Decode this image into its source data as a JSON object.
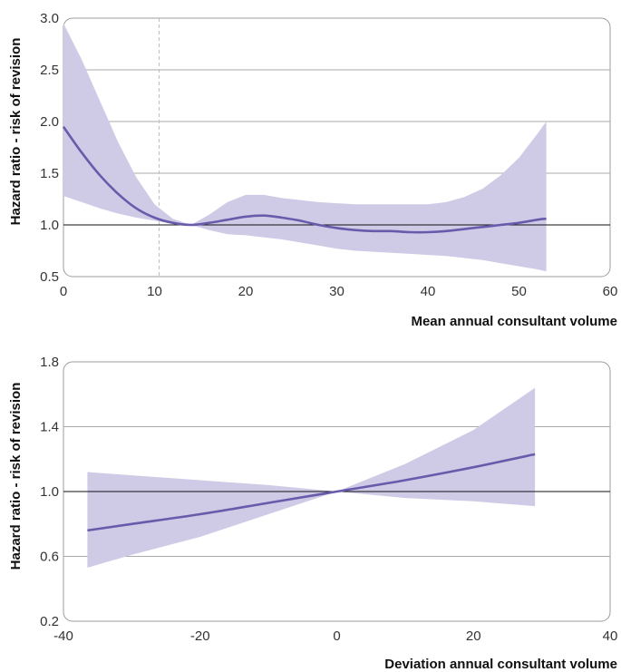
{
  "colors": {
    "band": "#cfcbe6",
    "line": "#6a5aab",
    "grid": "#a9a9a9",
    "ref": "#111111",
    "vline": "#bdbdbd"
  },
  "chart_data": [
    {
      "type": "line",
      "title": "",
      "xlabel": "Mean annual consultant volume",
      "ylabel": "Hazard ratio - risk of revision",
      "xlim": [
        0,
        60
      ],
      "ylim": [
        0.5,
        3.0
      ],
      "xticks": [
        0,
        10,
        20,
        30,
        40,
        50,
        60
      ],
      "yticks": [
        0.5,
        1.0,
        1.5,
        2.0,
        2.5,
        3.0
      ],
      "xtick_labels": [
        "0",
        "10",
        "20",
        "30",
        "40",
        "50",
        "60"
      ],
      "ytick_labels": [
        "0.5",
        "1.0",
        "1.5",
        "2.0",
        "2.5",
        "3.0"
      ],
      "grid": "horizontal",
      "reference_line_y": 1.0,
      "vertical_dashed_x": 10.5,
      "series": [
        {
          "x": [
            0,
            2,
            4,
            6,
            8,
            10,
            12,
            14,
            16,
            18,
            20,
            22,
            24,
            26,
            28,
            30,
            32,
            34,
            36,
            38,
            40,
            42,
            44,
            46,
            48,
            50,
            52,
            53
          ],
          "y": [
            1.95,
            1.7,
            1.48,
            1.3,
            1.16,
            1.07,
            1.02,
            1.0,
            1.02,
            1.05,
            1.08,
            1.09,
            1.07,
            1.04,
            1.0,
            0.97,
            0.95,
            0.94,
            0.94,
            0.93,
            0.93,
            0.94,
            0.96,
            0.98,
            1.0,
            1.02,
            1.05,
            1.06
          ],
          "lower": [
            1.28,
            1.22,
            1.16,
            1.11,
            1.07,
            1.04,
            1.01,
            1.0,
            0.95,
            0.91,
            0.9,
            0.88,
            0.86,
            0.83,
            0.8,
            0.77,
            0.75,
            0.74,
            0.73,
            0.72,
            0.71,
            0.7,
            0.68,
            0.66,
            0.63,
            0.6,
            0.57,
            0.55
          ],
          "upper": [
            2.95,
            2.6,
            2.2,
            1.8,
            1.46,
            1.2,
            1.06,
            1.0,
            1.1,
            1.22,
            1.29,
            1.29,
            1.26,
            1.24,
            1.22,
            1.21,
            1.2,
            1.2,
            1.2,
            1.2,
            1.2,
            1.22,
            1.27,
            1.35,
            1.48,
            1.65,
            1.88,
            2.0
          ]
        }
      ]
    },
    {
      "type": "line",
      "title": "",
      "xlabel": "Deviation annual consultant volume",
      "ylabel": "Hazard ratio - risk of revision",
      "xlim": [
        -40,
        40
      ],
      "ylim": [
        0.2,
        1.8
      ],
      "xticks": [
        -40,
        -20,
        0,
        20,
        40
      ],
      "yticks": [
        0.2,
        0.6,
        1.0,
        1.4,
        1.8
      ],
      "xtick_labels": [
        "-40",
        "-20",
        "0",
        "20",
        "40"
      ],
      "ytick_labels": [
        "0.2",
        "0.6",
        "1.0",
        "1.4",
        "1.8"
      ],
      "grid": "horizontal",
      "reference_line_y": 1.0,
      "series": [
        {
          "x": [
            -36.5,
            -30,
            -20,
            -10,
            0,
            10,
            20,
            29
          ],
          "y": [
            0.76,
            0.8,
            0.86,
            0.93,
            1.0,
            1.07,
            1.15,
            1.23
          ],
          "lower": [
            0.53,
            0.61,
            0.72,
            0.86,
            1.0,
            0.96,
            0.94,
            0.91
          ],
          "upper": [
            1.12,
            1.1,
            1.07,
            1.04,
            1.0,
            1.17,
            1.38,
            1.64
          ]
        }
      ]
    }
  ]
}
